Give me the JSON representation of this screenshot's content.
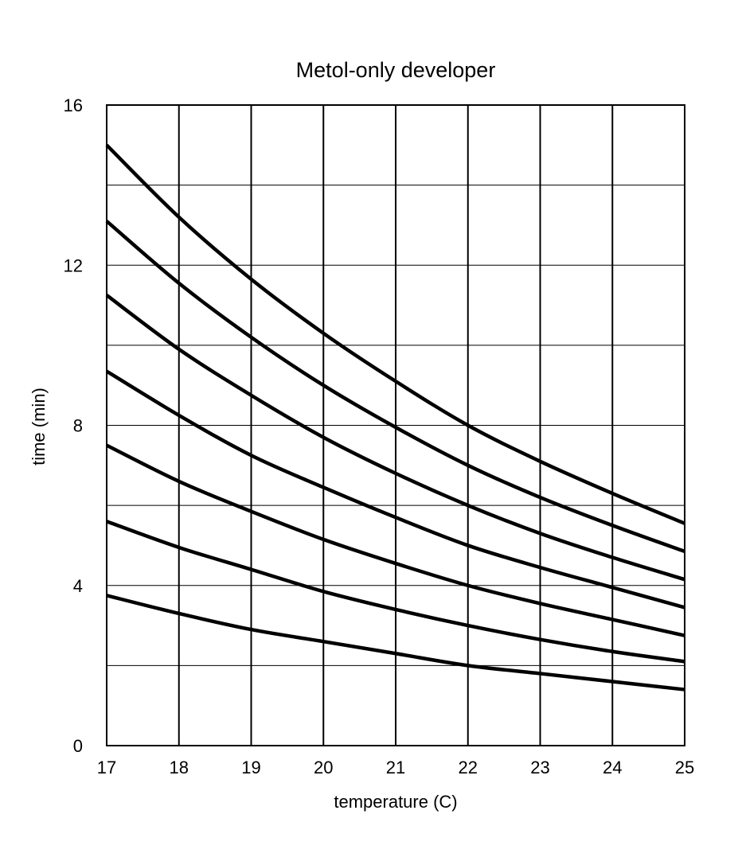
{
  "chart_data": {
    "type": "line",
    "title": "Metol-only developer",
    "xlabel": "temperature (C)",
    "ylabel": "time (min)",
    "xlim": [
      17,
      25
    ],
    "ylim": [
      0,
      16
    ],
    "x_ticks": [
      "17",
      "18",
      "19",
      "20",
      "21",
      "22",
      "23",
      "24",
      "25"
    ],
    "y_ticks": [
      "0",
      "4",
      "8",
      "12",
      "16"
    ],
    "grid": {
      "x_step": 1,
      "y_step": 2
    },
    "line_color": "#000000",
    "x": [
      17,
      18,
      19,
      20,
      21,
      22,
      23,
      24,
      25
    ],
    "series": [
      {
        "values": [
          15.0,
          13.2,
          11.65,
          10.3,
          9.1,
          8.0,
          7.1,
          6.3,
          5.55
        ]
      },
      {
        "values": [
          13.1,
          11.55,
          10.2,
          9.0,
          7.95,
          7.0,
          6.2,
          5.5,
          4.85
        ]
      },
      {
        "values": [
          11.25,
          9.9,
          8.75,
          7.7,
          6.8,
          6.0,
          5.3,
          4.7,
          4.15
        ]
      },
      {
        "values": [
          9.35,
          8.25,
          7.25,
          6.45,
          5.7,
          5.0,
          4.45,
          3.95,
          3.45
        ]
      },
      {
        "values": [
          7.5,
          6.6,
          5.85,
          5.15,
          4.55,
          4.0,
          3.55,
          3.15,
          2.75
        ]
      },
      {
        "values": [
          5.6,
          4.95,
          4.4,
          3.85,
          3.4,
          3.0,
          2.65,
          2.35,
          2.1
        ]
      },
      {
        "values": [
          3.75,
          3.3,
          2.9,
          2.6,
          2.3,
          2.0,
          1.8,
          1.6,
          1.4
        ]
      }
    ]
  }
}
